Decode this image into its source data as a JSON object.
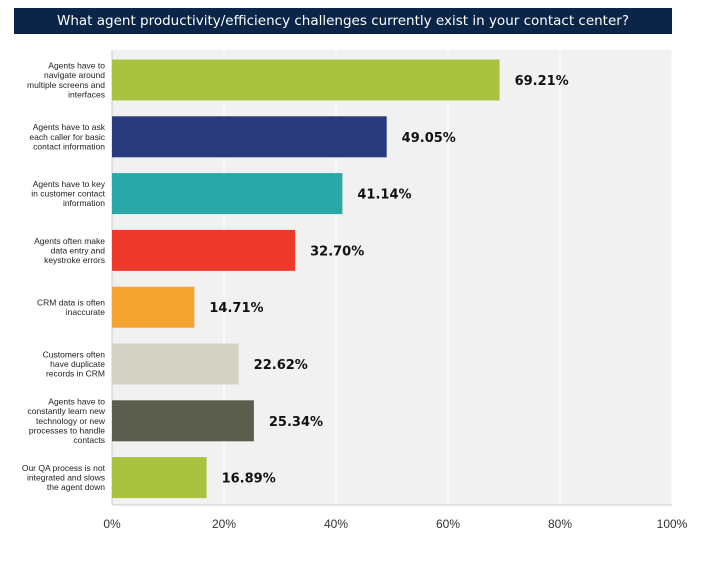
{
  "chart_data": {
    "type": "bar",
    "orientation": "horizontal",
    "title": "What agent productivity/efficiency challenges currently exist in your contact center?",
    "categories": [
      [
        "Agents have to",
        "navigate around",
        "multiple screens and",
        "interfaces"
      ],
      [
        "Agents have to ask",
        "each caller for basic",
        "contact information"
      ],
      [
        "Agents have to key",
        "in customer contact",
        "information"
      ],
      [
        "Agents often make",
        "data entry and",
        "keystroke errors"
      ],
      [
        "CRM data is often",
        "inaccurate"
      ],
      [
        "Customers often",
        "have duplicate",
        "records in CRM"
      ],
      [
        "Agents have to",
        "constantly learn new",
        "technology or new",
        "processes to handle",
        "contacts"
      ],
      [
        "Our QA process is not",
        "integrated and slows",
        "the agent down"
      ]
    ],
    "values": [
      69.21,
      49.05,
      41.14,
      32.7,
      14.71,
      22.62,
      25.34,
      16.89
    ],
    "value_labels": [
      "69.21%",
      "49.05%",
      "41.14%",
      "32.70%",
      "14.71%",
      "22.62%",
      "25.34%",
      "16.89%"
    ],
    "colors": [
      "#a9c23f",
      "#283a7c",
      "#2aa8a8",
      "#ee3a2a",
      "#f5a431",
      "#d3d3c4",
      "#5a5c4c",
      "#a9c23f"
    ],
    "xlim": [
      0,
      100
    ],
    "xticks": [
      "0%",
      "20%",
      "40%",
      "60%",
      "80%",
      "100%"
    ],
    "grid": true,
    "background": "#f1f1f1",
    "title_background": "#0b2548"
  }
}
